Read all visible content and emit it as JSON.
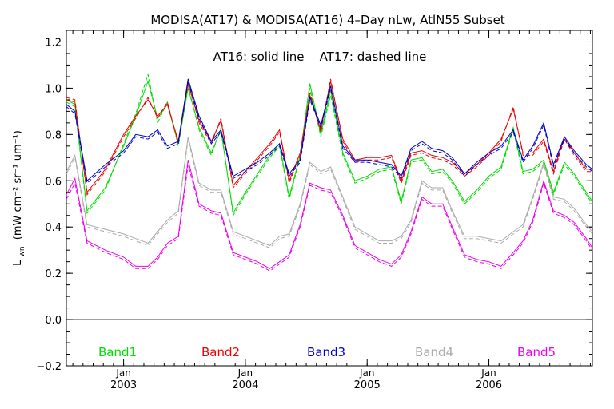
{
  "chart_data": {
    "type": "line",
    "title": "MODISA(AT17) & MODISA(AT16) 4–Day nLw, AtlN55 Subset",
    "subtitle": "AT16: solid line    AT17: dashed line",
    "ylabel": {
      "base": "L",
      "sub": "wn",
      "units": "(mW cm⁻² sr⁻¹ um⁻¹)"
    },
    "ylim": [
      -0.2,
      1.25
    ],
    "yticks": [
      -0.2,
      0.0,
      0.2,
      0.4,
      0.6,
      0.8,
      1.0,
      1.2
    ],
    "ytick_labels": [
      "−0.2",
      "0.0",
      "0.2",
      "0.4",
      "0.6",
      "0.8",
      "1.0",
      "1.2"
    ],
    "xlim": [
      2002.53,
      2006.85
    ],
    "xticks": [
      {
        "x": 2003.0,
        "month": "Jan",
        "year": "2003"
      },
      {
        "x": 2004.0,
        "month": "Jan",
        "year": "2004"
      },
      {
        "x": 2005.0,
        "month": "Jan",
        "year": "2005"
      },
      {
        "x": 2006.0,
        "month": "Jan",
        "year": "2006"
      }
    ],
    "zero_line": true,
    "grid": false,
    "legend": "bottom, inline colored labels",
    "series": [
      {
        "name": "Band1",
        "color": "#00dd00",
        "x": [
          2002.53,
          2002.6,
          2002.7,
          2002.85,
          2003.0,
          2003.1,
          2003.2,
          2003.28,
          2003.36,
          2003.45,
          2003.53,
          2003.62,
          2003.72,
          2003.8,
          2003.9,
          2004.0,
          2004.1,
          2004.2,
          2004.28,
          2004.36,
          2004.45,
          2004.53,
          2004.62,
          2004.7,
          2004.8,
          2004.9,
          2005.0,
          2005.1,
          2005.2,
          2005.28,
          2005.36,
          2005.45,
          2005.53,
          2005.62,
          2005.7,
          2005.8,
          2005.9,
          2006.0,
          2006.1,
          2006.2,
          2006.28,
          2006.36,
          2006.45,
          2006.53,
          2006.62,
          2006.7,
          2006.8,
          2006.85
        ],
        "solid": [
          0.95,
          0.93,
          0.47,
          0.57,
          0.75,
          0.88,
          1.03,
          0.87,
          0.93,
          0.76,
          1.0,
          0.83,
          0.72,
          0.82,
          0.46,
          0.55,
          0.63,
          0.71,
          0.76,
          0.53,
          0.71,
          1.02,
          0.8,
          0.99,
          0.72,
          0.6,
          0.62,
          0.65,
          0.66,
          0.51,
          0.69,
          0.7,
          0.64,
          0.65,
          0.6,
          0.51,
          0.56,
          0.62,
          0.66,
          0.83,
          0.64,
          0.65,
          0.69,
          0.55,
          0.68,
          0.63,
          0.55,
          0.51
        ],
        "dashed": [
          0.94,
          0.92,
          0.46,
          0.56,
          0.76,
          0.89,
          1.06,
          0.85,
          0.94,
          0.75,
          1.01,
          0.82,
          0.71,
          0.83,
          0.45,
          0.54,
          0.62,
          0.7,
          0.75,
          0.52,
          0.7,
          1.0,
          0.79,
          0.97,
          0.71,
          0.59,
          0.61,
          0.64,
          0.65,
          0.5,
          0.68,
          0.69,
          0.63,
          0.64,
          0.59,
          0.5,
          0.55,
          0.61,
          0.65,
          0.82,
          0.63,
          0.64,
          0.68,
          0.54,
          0.67,
          0.62,
          0.54,
          0.5
        ]
      },
      {
        "name": "Band2",
        "color": "#ee0000",
        "x": [
          2002.53,
          2002.6,
          2002.7,
          2002.85,
          2003.0,
          2003.1,
          2003.2,
          2003.28,
          2003.36,
          2003.45,
          2003.53,
          2003.62,
          2003.72,
          2003.8,
          2003.9,
          2004.0,
          2004.1,
          2004.2,
          2004.28,
          2004.36,
          2004.45,
          2004.53,
          2004.62,
          2004.7,
          2004.8,
          2004.9,
          2005.0,
          2005.1,
          2005.2,
          2005.28,
          2005.36,
          2005.45,
          2005.53,
          2005.62,
          2005.7,
          2005.8,
          2005.9,
          2006.0,
          2006.1,
          2006.2,
          2006.28,
          2006.36,
          2006.45,
          2006.53,
          2006.62,
          2006.7,
          2006.8,
          2006.85
        ],
        "solid": [
          0.95,
          0.94,
          0.55,
          0.65,
          0.8,
          0.88,
          0.95,
          0.88,
          0.93,
          0.77,
          1.02,
          0.86,
          0.77,
          0.86,
          0.58,
          0.64,
          0.7,
          0.76,
          0.82,
          0.6,
          0.72,
          0.97,
          0.82,
          1.03,
          0.78,
          0.69,
          0.7,
          0.7,
          0.71,
          0.6,
          0.72,
          0.73,
          0.71,
          0.7,
          0.68,
          0.63,
          0.67,
          0.72,
          0.78,
          0.91,
          0.72,
          0.72,
          0.78,
          0.64,
          0.79,
          0.72,
          0.65,
          0.65
        ],
        "dashed": [
          0.96,
          0.95,
          0.54,
          0.64,
          0.79,
          0.87,
          0.96,
          0.87,
          0.94,
          0.76,
          1.03,
          0.85,
          0.76,
          0.87,
          0.57,
          0.63,
          0.69,
          0.75,
          0.81,
          0.59,
          0.71,
          0.98,
          0.81,
          1.04,
          0.77,
          0.68,
          0.69,
          0.69,
          0.7,
          0.59,
          0.71,
          0.72,
          0.7,
          0.69,
          0.67,
          0.62,
          0.66,
          0.71,
          0.77,
          0.92,
          0.71,
          0.71,
          0.77,
          0.63,
          0.78,
          0.71,
          0.64,
          0.64
        ]
      },
      {
        "name": "Band3",
        "color": "#0000cc",
        "x": [
          2002.53,
          2002.6,
          2002.7,
          2002.85,
          2003.0,
          2003.1,
          2003.2,
          2003.28,
          2003.36,
          2003.45,
          2003.53,
          2003.62,
          2003.72,
          2003.8,
          2003.9,
          2004.0,
          2004.1,
          2004.2,
          2004.28,
          2004.36,
          2004.45,
          2004.53,
          2004.62,
          2004.7,
          2004.8,
          2004.9,
          2005.0,
          2005.1,
          2005.2,
          2005.28,
          2005.36,
          2005.45,
          2005.53,
          2005.62,
          2005.7,
          2005.8,
          2005.9,
          2006.0,
          2006.1,
          2006.2,
          2006.28,
          2006.36,
          2006.45,
          2006.53,
          2006.62,
          2006.7,
          2006.8,
          2006.85
        ],
        "solid": [
          0.93,
          0.9,
          0.6,
          0.67,
          0.73,
          0.8,
          0.79,
          0.82,
          0.75,
          0.77,
          1.04,
          0.88,
          0.77,
          0.82,
          0.62,
          0.65,
          0.68,
          0.72,
          0.76,
          0.63,
          0.69,
          0.96,
          0.84,
          1.01,
          0.75,
          0.69,
          0.69,
          0.68,
          0.67,
          0.62,
          0.74,
          0.77,
          0.74,
          0.73,
          0.7,
          0.63,
          0.68,
          0.72,
          0.75,
          0.82,
          0.69,
          0.75,
          0.85,
          0.67,
          0.79,
          0.73,
          0.67,
          0.65
        ],
        "dashed": [
          0.92,
          0.89,
          0.59,
          0.66,
          0.72,
          0.79,
          0.78,
          0.81,
          0.74,
          0.76,
          1.03,
          0.87,
          0.76,
          0.81,
          0.61,
          0.64,
          0.67,
          0.71,
          0.75,
          0.62,
          0.68,
          0.95,
          0.83,
          1.0,
          0.74,
          0.68,
          0.68,
          0.67,
          0.66,
          0.61,
          0.73,
          0.76,
          0.73,
          0.72,
          0.69,
          0.62,
          0.67,
          0.71,
          0.74,
          0.81,
          0.68,
          0.74,
          0.84,
          0.66,
          0.78,
          0.72,
          0.66,
          0.64
        ]
      },
      {
        "name": "Band4",
        "color": "#aaaaaa",
        "x": [
          2002.53,
          2002.6,
          2002.7,
          2002.85,
          2003.0,
          2003.1,
          2003.2,
          2003.28,
          2003.36,
          2003.45,
          2003.53,
          2003.62,
          2003.72,
          2003.8,
          2003.9,
          2004.0,
          2004.1,
          2004.2,
          2004.28,
          2004.36,
          2004.45,
          2004.53,
          2004.62,
          2004.7,
          2004.8,
          2004.9,
          2005.0,
          2005.1,
          2005.2,
          2005.28,
          2005.36,
          2005.45,
          2005.53,
          2005.62,
          2005.7,
          2005.8,
          2005.9,
          2006.0,
          2006.1,
          2006.2,
          2006.28,
          2006.36,
          2006.45,
          2006.53,
          2006.62,
          2006.7,
          2006.8,
          2006.85
        ],
        "solid": [
          0.64,
          0.71,
          0.41,
          0.39,
          0.37,
          0.35,
          0.33,
          0.38,
          0.43,
          0.47,
          0.79,
          0.59,
          0.56,
          0.56,
          0.38,
          0.36,
          0.34,
          0.32,
          0.36,
          0.37,
          0.5,
          0.68,
          0.64,
          0.66,
          0.53,
          0.4,
          0.37,
          0.34,
          0.34,
          0.36,
          0.43,
          0.6,
          0.57,
          0.57,
          0.47,
          0.36,
          0.36,
          0.35,
          0.34,
          0.38,
          0.41,
          0.53,
          0.68,
          0.53,
          0.52,
          0.48,
          0.41,
          0.38
        ],
        "dashed": [
          0.63,
          0.7,
          0.4,
          0.38,
          0.36,
          0.34,
          0.32,
          0.37,
          0.42,
          0.46,
          0.78,
          0.58,
          0.55,
          0.55,
          0.37,
          0.35,
          0.33,
          0.31,
          0.35,
          0.36,
          0.49,
          0.67,
          0.63,
          0.65,
          0.52,
          0.39,
          0.36,
          0.33,
          0.33,
          0.35,
          0.42,
          0.59,
          0.56,
          0.56,
          0.46,
          0.35,
          0.35,
          0.34,
          0.33,
          0.37,
          0.4,
          0.52,
          0.67,
          0.52,
          0.51,
          0.47,
          0.4,
          0.37
        ]
      },
      {
        "name": "Band5",
        "color": "#ee00ee",
        "x": [
          2002.53,
          2002.6,
          2002.7,
          2002.85,
          2003.0,
          2003.1,
          2003.2,
          2003.28,
          2003.36,
          2003.45,
          2003.53,
          2003.62,
          2003.72,
          2003.8,
          2003.9,
          2004.0,
          2004.1,
          2004.2,
          2004.28,
          2004.36,
          2004.45,
          2004.53,
          2004.62,
          2004.7,
          2004.8,
          2004.9,
          2005.0,
          2005.1,
          2005.2,
          2005.28,
          2005.36,
          2005.45,
          2005.53,
          2005.62,
          2005.7,
          2005.8,
          2005.9,
          2006.0,
          2006.1,
          2006.2,
          2006.28,
          2006.36,
          2006.45,
          2006.53,
          2006.62,
          2006.7,
          2006.8,
          2006.85
        ],
        "solid": [
          0.54,
          0.61,
          0.34,
          0.3,
          0.27,
          0.23,
          0.23,
          0.27,
          0.33,
          0.36,
          0.69,
          0.5,
          0.47,
          0.46,
          0.29,
          0.27,
          0.25,
          0.22,
          0.25,
          0.28,
          0.41,
          0.59,
          0.57,
          0.56,
          0.45,
          0.32,
          0.29,
          0.26,
          0.24,
          0.28,
          0.38,
          0.53,
          0.5,
          0.5,
          0.4,
          0.28,
          0.26,
          0.25,
          0.23,
          0.29,
          0.34,
          0.43,
          0.6,
          0.47,
          0.45,
          0.42,
          0.35,
          0.31
        ],
        "dashed": [
          0.52,
          0.59,
          0.33,
          0.29,
          0.26,
          0.22,
          0.22,
          0.26,
          0.32,
          0.35,
          0.67,
          0.49,
          0.46,
          0.45,
          0.28,
          0.26,
          0.24,
          0.21,
          0.24,
          0.27,
          0.4,
          0.58,
          0.56,
          0.55,
          0.44,
          0.31,
          0.28,
          0.25,
          0.23,
          0.27,
          0.37,
          0.52,
          0.49,
          0.49,
          0.39,
          0.27,
          0.25,
          0.24,
          0.22,
          0.28,
          0.33,
          0.42,
          0.59,
          0.46,
          0.44,
          0.41,
          0.34,
          0.3
        ]
      }
    ]
  }
}
